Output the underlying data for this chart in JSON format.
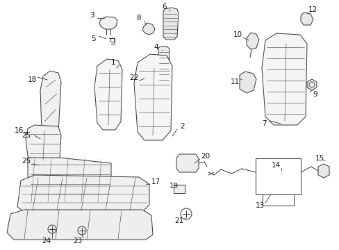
{
  "bg_color": "#ffffff",
  "line_color": "#333333",
  "text_color": "#111111",
  "figsize": [
    4.89,
    3.6
  ],
  "dpi": 100
}
